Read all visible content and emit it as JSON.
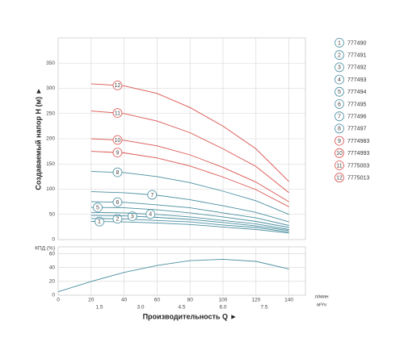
{
  "chart_data": [
    {
      "type": "line",
      "ylabel": "Создаваемый напор H (м) ►",
      "x": [
        20,
        40,
        60,
        80,
        100,
        120,
        140
      ],
      "xlim": [
        0,
        150
      ],
      "xticks": [
        0,
        20,
        40,
        60,
        80,
        100,
        120,
        140
      ],
      "ylim": [
        0,
        400
      ],
      "yticks": [
        0,
        50,
        100,
        150,
        200,
        250,
        300,
        350
      ],
      "grid": true,
      "series": [
        {
          "label": "1",
          "name": "777490",
          "color": "#4a8fa0",
          "values": [
            36,
            35,
            33,
            30,
            25,
            20,
            13
          ]
        },
        {
          "label": "2",
          "name": "777491",
          "color": "#4a8fa0",
          "values": [
            42,
            41,
            38,
            35,
            29,
            24,
            15
          ]
        },
        {
          "label": "3",
          "name": "777492",
          "color": "#4a8fa0",
          "values": [
            48,
            47,
            44,
            40,
            34,
            27,
            18
          ]
        },
        {
          "label": "4",
          "name": "777493",
          "color": "#4a8fa0",
          "values": [
            54,
            53,
            50,
            45,
            38,
            31,
            20
          ]
        },
        {
          "label": "5",
          "name": "777494",
          "color": "#4a8fa0",
          "values": [
            64,
            63,
            59,
            53,
            45,
            36,
            24
          ]
        },
        {
          "label": "6",
          "name": "777495",
          "color": "#4a8fa0",
          "values": [
            75,
            74,
            69,
            63,
            53,
            43,
            28
          ]
        },
        {
          "label": "7",
          "name": "777496",
          "color": "#4a8fa0",
          "values": [
            95,
            93,
            88,
            79,
            67,
            54,
            35
          ]
        },
        {
          "label": "8",
          "name": "777497",
          "color": "#4a8fa0",
          "values": [
            135,
            133,
            125,
            113,
            96,
            77,
            50
          ]
        },
        {
          "label": "9",
          "name": "7774983",
          "color": "#d9534f",
          "values": [
            175,
            172,
            162,
            146,
            124,
            99,
            65
          ]
        },
        {
          "label": "10",
          "name": "7774993",
          "color": "#d9534f",
          "values": [
            200,
            197,
            186,
            168,
            143,
            114,
            75
          ]
        },
        {
          "label": "11",
          "name": "7775003",
          "color": "#d9534f",
          "values": [
            255,
            250,
            235,
            212,
            180,
            145,
            93
          ]
        },
        {
          "label": "12",
          "name": "7775013",
          "color": "#d9534f",
          "values": [
            309,
            305,
            290,
            262,
            225,
            180,
            115
          ]
        }
      ]
    },
    {
      "type": "line",
      "ylabel": "КПД (%)",
      "xlabel": "Производительность Q ►",
      "xunit": "л/мин",
      "x2unit": "м³/ч",
      "x": [
        0,
        20,
        40,
        60,
        80,
        100,
        120,
        140
      ],
      "values": [
        5,
        20,
        33,
        43,
        50,
        52,
        49,
        38
      ],
      "color": "#4a8fa0",
      "xlim": [
        0,
        150
      ],
      "xticks": [
        0,
        20,
        40,
        60,
        80,
        100,
        120,
        140
      ],
      "x2lim": [
        0,
        9
      ],
      "x2ticks": [
        1.5,
        {
          "value": 3,
          "label": "3.0"
        },
        4.5,
        {
          "value": 6,
          "label": "6.0"
        },
        7.5
      ],
      "ylim": [
        0,
        70
      ],
      "yticks": [
        0,
        20,
        40,
        60
      ],
      "grid": true
    }
  ]
}
